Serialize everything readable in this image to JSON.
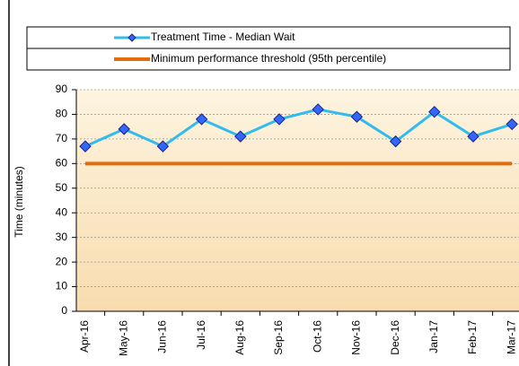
{
  "chart_data": {
    "type": "line",
    "ylabel": "Time (minutes)",
    "categories": [
      "Apr-16",
      "May-16",
      "Jun-16",
      "Jul-16",
      "Aug-16",
      "Sep-16",
      "Oct-16",
      "Nov-16",
      "Dec-16",
      "Jan-17",
      "Feb-17",
      "Mar-17"
    ],
    "series": [
      {
        "name": "Treatment Time - Median Wait",
        "color": "#33bbee",
        "marker_color": "#3366ff",
        "marker": "diamond",
        "values": [
          67,
          74,
          67,
          78,
          71,
          78,
          82,
          79,
          69,
          81,
          71,
          76
        ]
      },
      {
        "name": "Minimum performance threshold (95th percentile)",
        "color": "#e36c0a",
        "values": [
          60,
          60,
          60,
          60,
          60,
          60,
          60,
          60,
          60,
          60,
          60,
          60
        ]
      }
    ],
    "ylim": [
      0,
      90
    ],
    "yticks": [
      0,
      10,
      20,
      30,
      40,
      50,
      60,
      70,
      80,
      90
    ],
    "grid": true
  }
}
